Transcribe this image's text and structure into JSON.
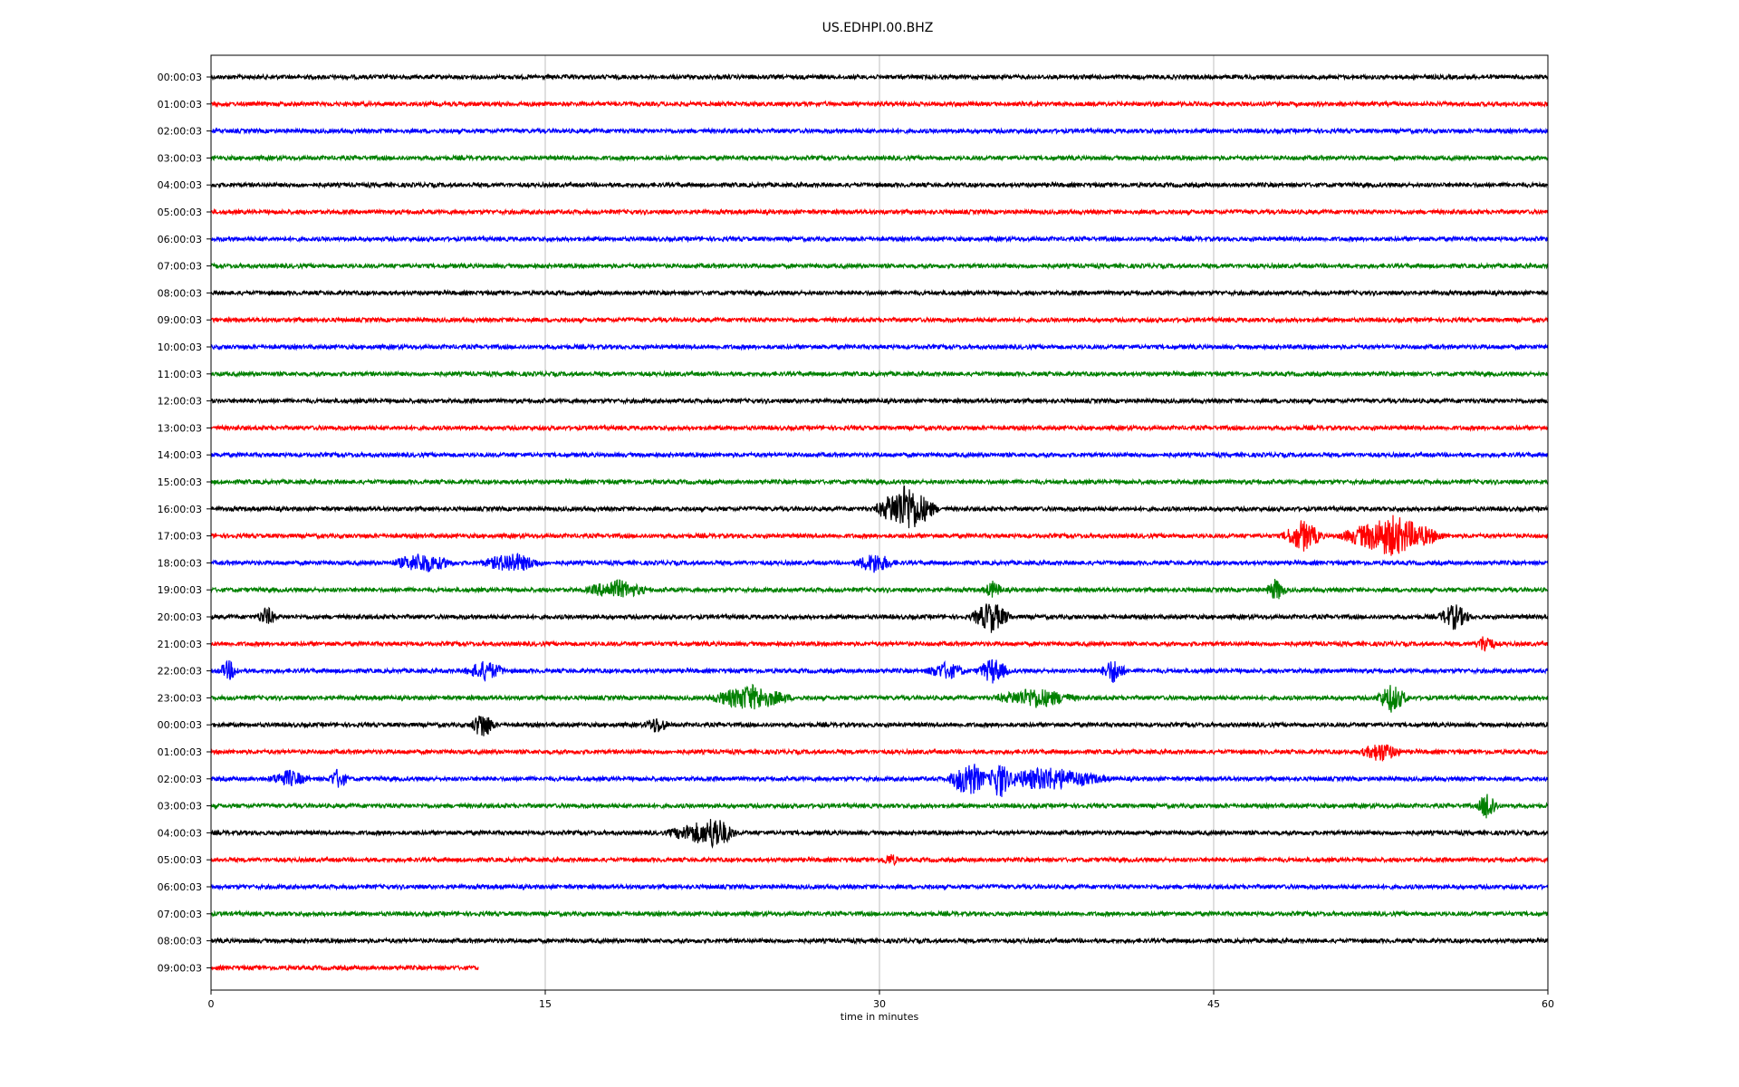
{
  "chart_data": {
    "type": "line",
    "title": "US.EDHPI.00.BHZ",
    "xlabel": "time in minutes",
    "ylabel": "",
    "xlim": [
      0,
      60
    ],
    "x_ticks": [
      0,
      15,
      30,
      45,
      60
    ],
    "grid": "vertical",
    "legend": "none",
    "series_colors": [
      "#000000",
      "#ff0000",
      "#0000ff",
      "#008000"
    ],
    "row_labels": [
      "00:00:03",
      "01:00:03",
      "02:00:03",
      "03:00:03",
      "04:00:03",
      "05:00:03",
      "06:00:03",
      "07:00:03",
      "08:00:03",
      "09:00:03",
      "10:00:03",
      "11:00:03",
      "12:00:03",
      "13:00:03",
      "14:00:03",
      "15:00:03",
      "16:00:03",
      "17:00:03",
      "18:00:03",
      "19:00:03",
      "20:00:03",
      "21:00:03",
      "22:00:03",
      "23:00:03",
      "00:00:03",
      "01:00:03",
      "02:00:03",
      "03:00:03",
      "04:00:03",
      "05:00:03",
      "06:00:03",
      "07:00:03",
      "08:00:03",
      "09:00:03"
    ],
    "trace_end_minutes": [
      60,
      60,
      60,
      60,
      60,
      60,
      60,
      60,
      60,
      60,
      60,
      60,
      60,
      60,
      60,
      60,
      60,
      60,
      60,
      60,
      60,
      60,
      60,
      60,
      60,
      60,
      60,
      60,
      60,
      60,
      60,
      60,
      60,
      12
    ],
    "events": [
      {
        "row": 16,
        "minute": 31.2,
        "amplitude": 1.6,
        "duration": 1.5
      },
      {
        "row": 17,
        "minute": 49.0,
        "amplitude": 1.0,
        "duration": 1.0
      },
      {
        "row": 17,
        "minute": 53.0,
        "amplitude": 1.3,
        "duration": 2.5
      },
      {
        "row": 18,
        "minute": 9.5,
        "amplitude": 0.6,
        "duration": 1.5
      },
      {
        "row": 18,
        "minute": 13.5,
        "amplitude": 0.6,
        "duration": 1.5
      },
      {
        "row": 18,
        "minute": 29.8,
        "amplitude": 0.6,
        "duration": 1.0
      },
      {
        "row": 19,
        "minute": 18.2,
        "amplitude": 0.6,
        "duration": 1.5
      },
      {
        "row": 19,
        "minute": 35.1,
        "amplitude": 0.5,
        "duration": 0.5
      },
      {
        "row": 19,
        "minute": 47.8,
        "amplitude": 0.7,
        "duration": 0.5
      },
      {
        "row": 20,
        "minute": 2.5,
        "amplitude": 0.6,
        "duration": 0.5
      },
      {
        "row": 20,
        "minute": 35.0,
        "amplitude": 1.0,
        "duration": 1.0
      },
      {
        "row": 20,
        "minute": 55.8,
        "amplitude": 0.8,
        "duration": 0.8
      },
      {
        "row": 21,
        "minute": 57.2,
        "amplitude": 0.6,
        "duration": 0.5
      },
      {
        "row": 22,
        "minute": 0.8,
        "amplitude": 0.6,
        "duration": 0.5
      },
      {
        "row": 22,
        "minute": 12.3,
        "amplitude": 0.6,
        "duration": 1.0
      },
      {
        "row": 22,
        "minute": 33.0,
        "amplitude": 0.5,
        "duration": 1.0
      },
      {
        "row": 22,
        "minute": 35.1,
        "amplitude": 0.8,
        "duration": 0.8
      },
      {
        "row": 22,
        "minute": 40.5,
        "amplitude": 0.8,
        "duration": 0.6
      },
      {
        "row": 23,
        "minute": 24.2,
        "amplitude": 0.8,
        "duration": 2.0
      },
      {
        "row": 23,
        "minute": 37.0,
        "amplitude": 0.6,
        "duration": 2.0
      },
      {
        "row": 23,
        "minute": 53.0,
        "amplitude": 0.9,
        "duration": 0.8
      },
      {
        "row": 24,
        "minute": 12.2,
        "amplitude": 0.9,
        "duration": 0.6
      },
      {
        "row": 24,
        "minute": 20.0,
        "amplitude": 0.5,
        "duration": 0.6
      },
      {
        "row": 25,
        "minute": 52.5,
        "amplitude": 0.6,
        "duration": 1.0
      },
      {
        "row": 26,
        "minute": 3.5,
        "amplitude": 0.5,
        "duration": 1.0
      },
      {
        "row": 26,
        "minute": 5.7,
        "amplitude": 0.6,
        "duration": 0.5
      },
      {
        "row": 26,
        "minute": 34.0,
        "amplitude": 1.2,
        "duration": 1.0
      },
      {
        "row": 26,
        "minute": 35.4,
        "amplitude": 1.3,
        "duration": 0.6
      },
      {
        "row": 26,
        "minute": 37.5,
        "amplitude": 0.7,
        "duration": 3.0
      },
      {
        "row": 27,
        "minute": 57.3,
        "amplitude": 1.0,
        "duration": 0.5
      },
      {
        "row": 28,
        "minute": 21.8,
        "amplitude": 0.6,
        "duration": 1.5
      },
      {
        "row": 28,
        "minute": 22.6,
        "amplitude": 1.1,
        "duration": 1.0
      },
      {
        "row": 29,
        "minute": 30.5,
        "amplitude": 0.3,
        "duration": 0.5
      }
    ]
  }
}
